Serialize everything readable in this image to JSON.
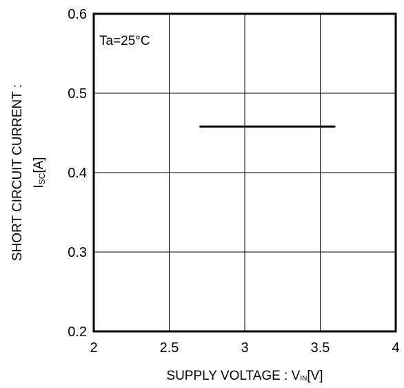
{
  "chart_data": {
    "type": "line",
    "annotation": "Ta=25°C",
    "xlabel": {
      "text": "SUPPLY VOLTAGE : V",
      "sub": "IN",
      "unit": "[V]"
    },
    "ylabel": {
      "line1": "SHORT CIRCUIT CURRENT :",
      "main": "I",
      "sub": "SC",
      "unit": "[A]"
    },
    "xlim": [
      2,
      4
    ],
    "ylim": [
      0.2,
      0.6
    ],
    "x_ticks": [
      2,
      2.5,
      3,
      3.5,
      4
    ],
    "y_ticks": [
      0.2,
      0.3,
      0.4,
      0.5,
      0.6
    ],
    "x_tick_labels": [
      "2",
      "2.5",
      "3",
      "3.5",
      "4"
    ],
    "y_tick_labels": [
      "0.2",
      "0.3",
      "0.4",
      "0.5",
      "0.6"
    ],
    "grid": true,
    "series": [
      {
        "x": [
          2.7,
          3.6
        ],
        "y": [
          0.458,
          0.458
        ]
      }
    ],
    "colors": {
      "line": "#000000",
      "grid": "#000000",
      "frame": "#000000"
    }
  }
}
